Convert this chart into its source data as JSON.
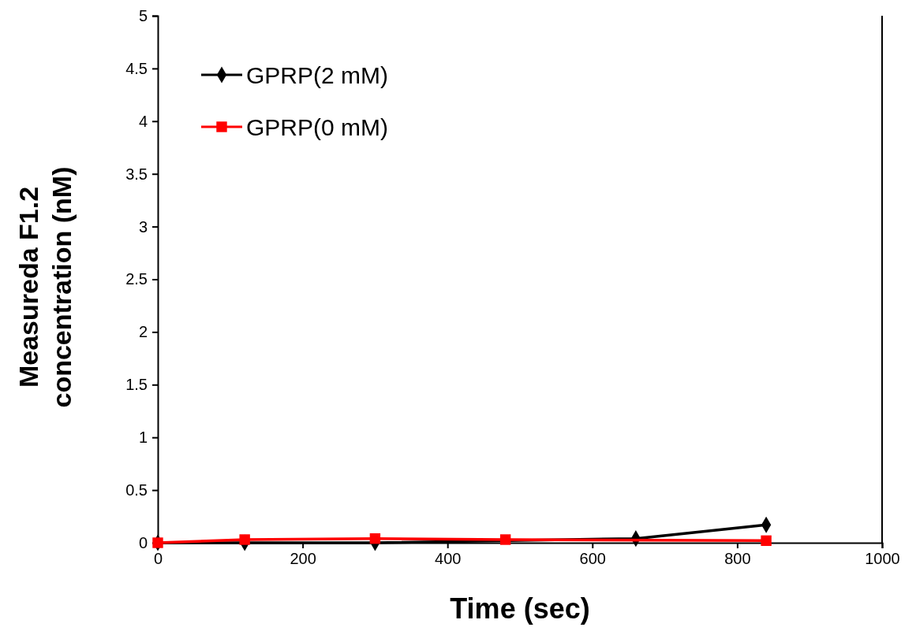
{
  "chart_data": {
    "type": "line",
    "xlabel": "Time (sec)",
    "ylabel": "Measureda F1.2 concentration (nM)",
    "xlim": [
      0,
      1000
    ],
    "xticks": [
      0,
      200,
      400,
      600,
      800,
      1000
    ],
    "ylim": [
      0,
      5
    ],
    "yticks": [
      0,
      0.5,
      1,
      1.5,
      2,
      2.5,
      3,
      3.5,
      4,
      4.5,
      5
    ],
    "grid": false,
    "legend": "top left",
    "line_style": "solid",
    "series": [
      {
        "name": "GPRP(2 mM)",
        "color": "#000000",
        "marker": "diamond",
        "x": [
          0,
          120,
          300,
          480,
          660,
          840
        ],
        "values": [
          0,
          0,
          0,
          null,
          0.04,
          0.17
        ]
      },
      {
        "name": "GPRP(0 mM)",
        "color": "#ff0000",
        "marker": "square",
        "x": [
          0,
          120,
          300,
          480,
          840
        ],
        "values": [
          0,
          0.03,
          0.04,
          0.03,
          0.02
        ]
      }
    ]
  }
}
